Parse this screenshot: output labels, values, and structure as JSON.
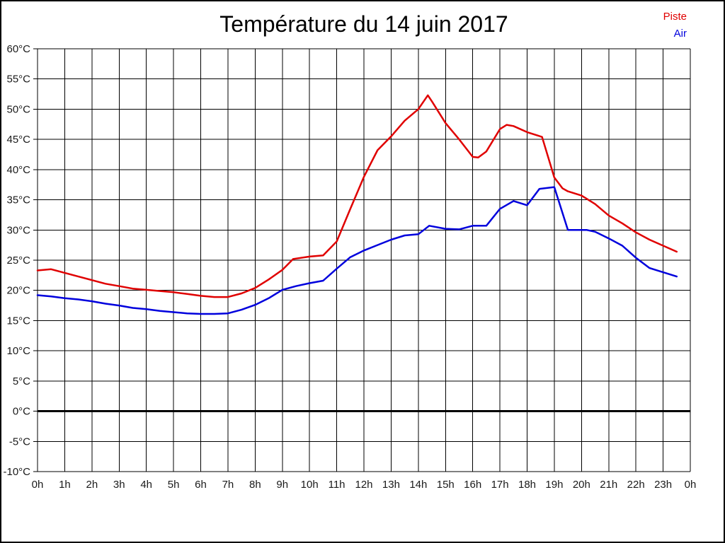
{
  "title": "Température du 14 juin 2017",
  "chart_data": {
    "type": "line",
    "title": "Température du 14 juin 2017",
    "grid": true,
    "background": "#ffffff",
    "grid_color": "#000000",
    "legend_position": "top-right",
    "xlim": [
      0,
      24
    ],
    "ylim": [
      -10,
      60
    ],
    "y_step": 5,
    "zero_line": {
      "value": 0,
      "stroke_width": 3
    },
    "x_tick_labels": [
      "0h",
      "1h",
      "2h",
      "3h",
      "4h",
      "5h",
      "6h",
      "7h",
      "8h",
      "9h",
      "10h",
      "11h",
      "12h",
      "13h",
      "14h",
      "15h",
      "16h",
      "17h",
      "18h",
      "19h",
      "20h",
      "21h",
      "22h",
      "23h",
      "0h"
    ],
    "y_ticks": [
      {
        "value": 60,
        "label": "60°C"
      },
      {
        "value": 55,
        "label": "55°C"
      },
      {
        "value": 50,
        "label": "50°C"
      },
      {
        "value": 45,
        "label": "45°C"
      },
      {
        "value": 40,
        "label": "40°C"
      },
      {
        "value": 35,
        "label": "35°C"
      },
      {
        "value": 30,
        "label": "30°C"
      },
      {
        "value": 25,
        "label": "25°C"
      },
      {
        "value": 20,
        "label": "20°C"
      },
      {
        "value": 15,
        "label": "15°C"
      },
      {
        "value": 10,
        "label": "10°C"
      },
      {
        "value": 5,
        "label": "5°C"
      },
      {
        "value": 0,
        "label": "0°C"
      },
      {
        "value": -5,
        "label": "-5°C"
      },
      {
        "value": -10,
        "label": "-10°C"
      }
    ],
    "series": [
      {
        "name": "Piste",
        "color": "#e00000",
        "points": [
          [
            0,
            23.3
          ],
          [
            0.5,
            23.5
          ],
          [
            1,
            22.9
          ],
          [
            1.5,
            22.3
          ],
          [
            2,
            21.7
          ],
          [
            2.5,
            21.1
          ],
          [
            3,
            20.7
          ],
          [
            3.5,
            20.3
          ],
          [
            4,
            20.1
          ],
          [
            4.5,
            19.9
          ],
          [
            5,
            19.7
          ],
          [
            5.5,
            19.4
          ],
          [
            6,
            19.1
          ],
          [
            6.5,
            18.9
          ],
          [
            7,
            18.9
          ],
          [
            7.5,
            19.5
          ],
          [
            8,
            20.4
          ],
          [
            8.5,
            21.8
          ],
          [
            9,
            23.4
          ],
          [
            9.4,
            25.2
          ],
          [
            10,
            25.6
          ],
          [
            10.5,
            25.8
          ],
          [
            11,
            28.1
          ],
          [
            11.5,
            33.5
          ],
          [
            12,
            38.8
          ],
          [
            12.5,
            43.2
          ],
          [
            13,
            45.5
          ],
          [
            13.5,
            48.1
          ],
          [
            14,
            50.0
          ],
          [
            14.35,
            52.3
          ],
          [
            14.5,
            51.3
          ],
          [
            15,
            47.7
          ],
          [
            15.5,
            45.0
          ],
          [
            16,
            42.1
          ],
          [
            16.2,
            42.0
          ],
          [
            16.5,
            43.0
          ],
          [
            17,
            46.7
          ],
          [
            17.25,
            47.4
          ],
          [
            17.5,
            47.2
          ],
          [
            18,
            46.2
          ],
          [
            18.55,
            45.4
          ],
          [
            19,
            38.7
          ],
          [
            19.3,
            36.9
          ],
          [
            19.5,
            36.4
          ],
          [
            20,
            35.7
          ],
          [
            20.5,
            34.3
          ],
          [
            21,
            32.4
          ],
          [
            21.5,
            31.1
          ],
          [
            22,
            29.6
          ],
          [
            22.5,
            28.4
          ],
          [
            23,
            27.4
          ],
          [
            23.5,
            26.4
          ]
        ]
      },
      {
        "name": "Air",
        "color": "#0000dd",
        "points": [
          [
            0,
            19.2
          ],
          [
            0.5,
            19.0
          ],
          [
            1,
            18.7
          ],
          [
            1.5,
            18.5
          ],
          [
            2,
            18.2
          ],
          [
            2.5,
            17.8
          ],
          [
            3,
            17.5
          ],
          [
            3.5,
            17.1
          ],
          [
            4,
            16.9
          ],
          [
            4.5,
            16.6
          ],
          [
            5,
            16.4
          ],
          [
            5.5,
            16.2
          ],
          [
            6,
            16.1
          ],
          [
            6.5,
            16.1
          ],
          [
            7,
            16.2
          ],
          [
            7.5,
            16.8
          ],
          [
            8,
            17.6
          ],
          [
            8.5,
            18.7
          ],
          [
            9,
            20.1
          ],
          [
            9.5,
            20.7
          ],
          [
            10,
            21.2
          ],
          [
            10.5,
            21.6
          ],
          [
            11,
            23.6
          ],
          [
            11.5,
            25.5
          ],
          [
            12,
            26.6
          ],
          [
            12.5,
            27.5
          ],
          [
            13,
            28.4
          ],
          [
            13.5,
            29.1
          ],
          [
            14,
            29.3
          ],
          [
            14.4,
            30.7
          ],
          [
            15,
            30.2
          ],
          [
            15.5,
            30.1
          ],
          [
            16,
            30.7
          ],
          [
            16.5,
            30.7
          ],
          [
            17,
            33.5
          ],
          [
            17.5,
            34.8
          ],
          [
            18,
            34.1
          ],
          [
            18.45,
            36.8
          ],
          [
            19,
            37.1
          ],
          [
            19.5,
            30.0
          ],
          [
            20.2,
            30.0
          ],
          [
            20.5,
            29.7
          ],
          [
            21,
            28.6
          ],
          [
            21.5,
            27.4
          ],
          [
            22,
            25.4
          ],
          [
            22.5,
            23.7
          ],
          [
            23,
            23.0
          ],
          [
            23.5,
            22.3
          ]
        ]
      }
    ]
  }
}
